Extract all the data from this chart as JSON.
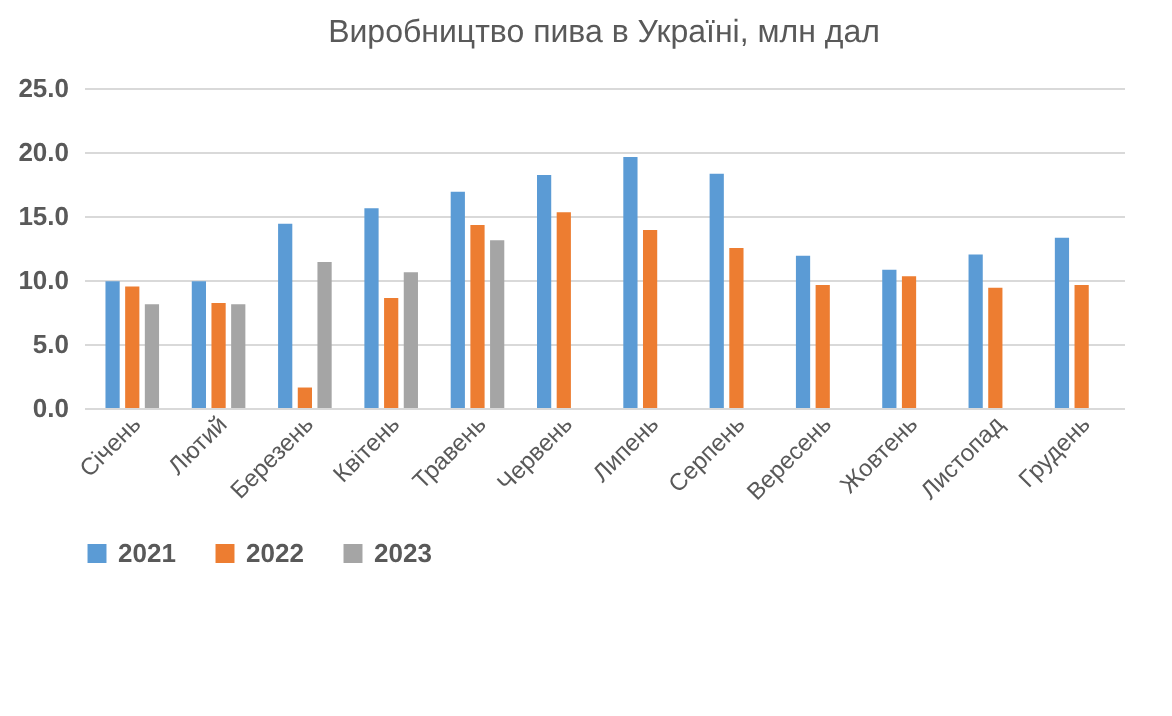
{
  "chart_data": {
    "type": "bar",
    "title": "Виробництво пива в Україні, млн дал",
    "categories": [
      "Січень",
      "Лютий",
      "Березень",
      "Квітень",
      "Травень",
      "Червень",
      "Липень",
      "Серпень",
      "Вересень",
      "Жовтень",
      "Листопад",
      "Грудень"
    ],
    "series": [
      {
        "name": "2021",
        "color": "#5b9bd5",
        "values": [
          9.9,
          9.9,
          14.4,
          15.6,
          16.9,
          18.2,
          19.6,
          18.3,
          11.9,
          10.8,
          12.0,
          13.3
        ]
      },
      {
        "name": "2022",
        "color": "#ed7d31",
        "values": [
          9.5,
          8.2,
          1.6,
          8.6,
          14.3,
          15.3,
          13.9,
          12.5,
          9.6,
          10.3,
          9.4,
          9.6
        ]
      },
      {
        "name": "2023",
        "color": "#a5a5a5",
        "values": [
          8.1,
          8.1,
          11.4,
          10.6,
          13.1,
          null,
          null,
          null,
          null,
          null,
          null,
          null
        ]
      }
    ],
    "ylim": [
      0,
      25
    ],
    "yticks": [
      {
        "value": 0,
        "label": "0.0"
      },
      {
        "value": 5,
        "label": "5.0"
      },
      {
        "value": 10,
        "label": "10.0"
      },
      {
        "value": 15,
        "label": "15.0"
      },
      {
        "value": 20,
        "label": "20.0"
      },
      {
        "value": 25,
        "label": "25.0"
      }
    ],
    "grid": "y",
    "legend": "bottom"
  }
}
